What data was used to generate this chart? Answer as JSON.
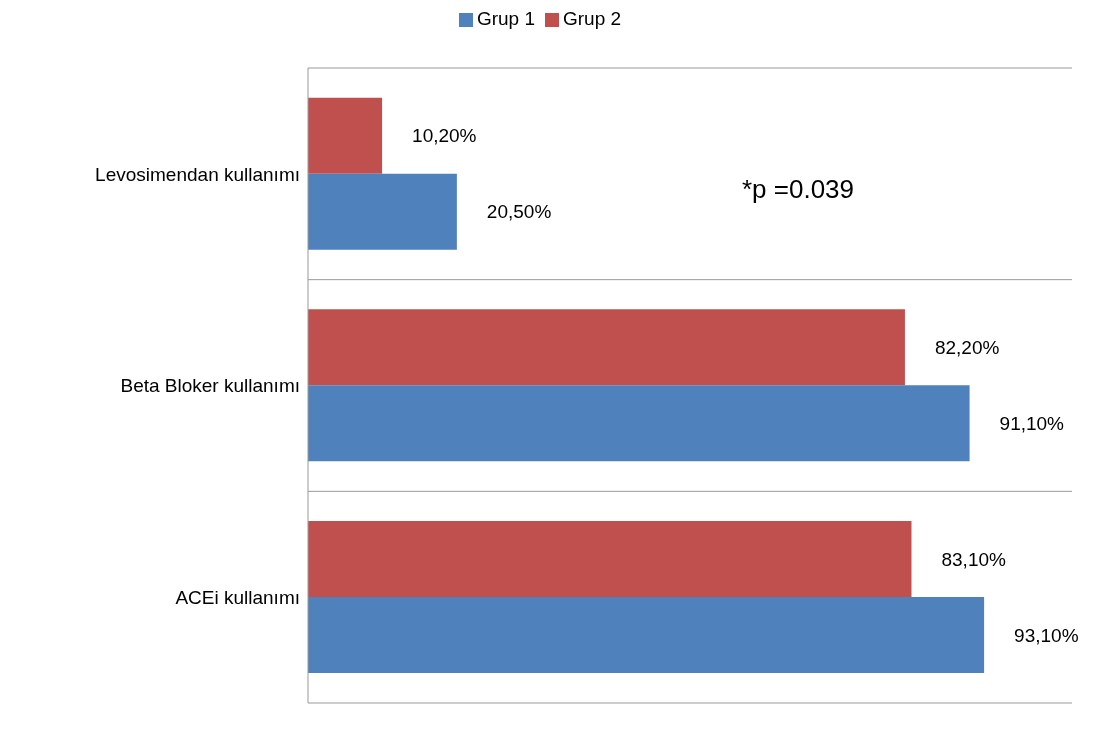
{
  "chart_data": {
    "type": "bar",
    "orientation": "horizontal",
    "categories": [
      "Levosimendan kullanımı",
      "Beta Bloker kullanımı",
      "ACEi kullanımı"
    ],
    "series": [
      {
        "name": "Grup 2",
        "color": "#c0504d",
        "values": [
          10.2,
          82.2,
          83.1
        ],
        "value_labels": [
          "10,20%",
          "82,20%",
          "83,10%"
        ]
      },
      {
        "name": "Grup 1",
        "color": "#4f81bd",
        "values": [
          20.5,
          91.1,
          93.1
        ],
        "value_labels": [
          "20,50%",
          "91,10%",
          "93,10%"
        ]
      }
    ],
    "annotations": [
      "*p =0.039"
    ],
    "legend": "top",
    "grid": "y",
    "tick_labels": "y"
  }
}
